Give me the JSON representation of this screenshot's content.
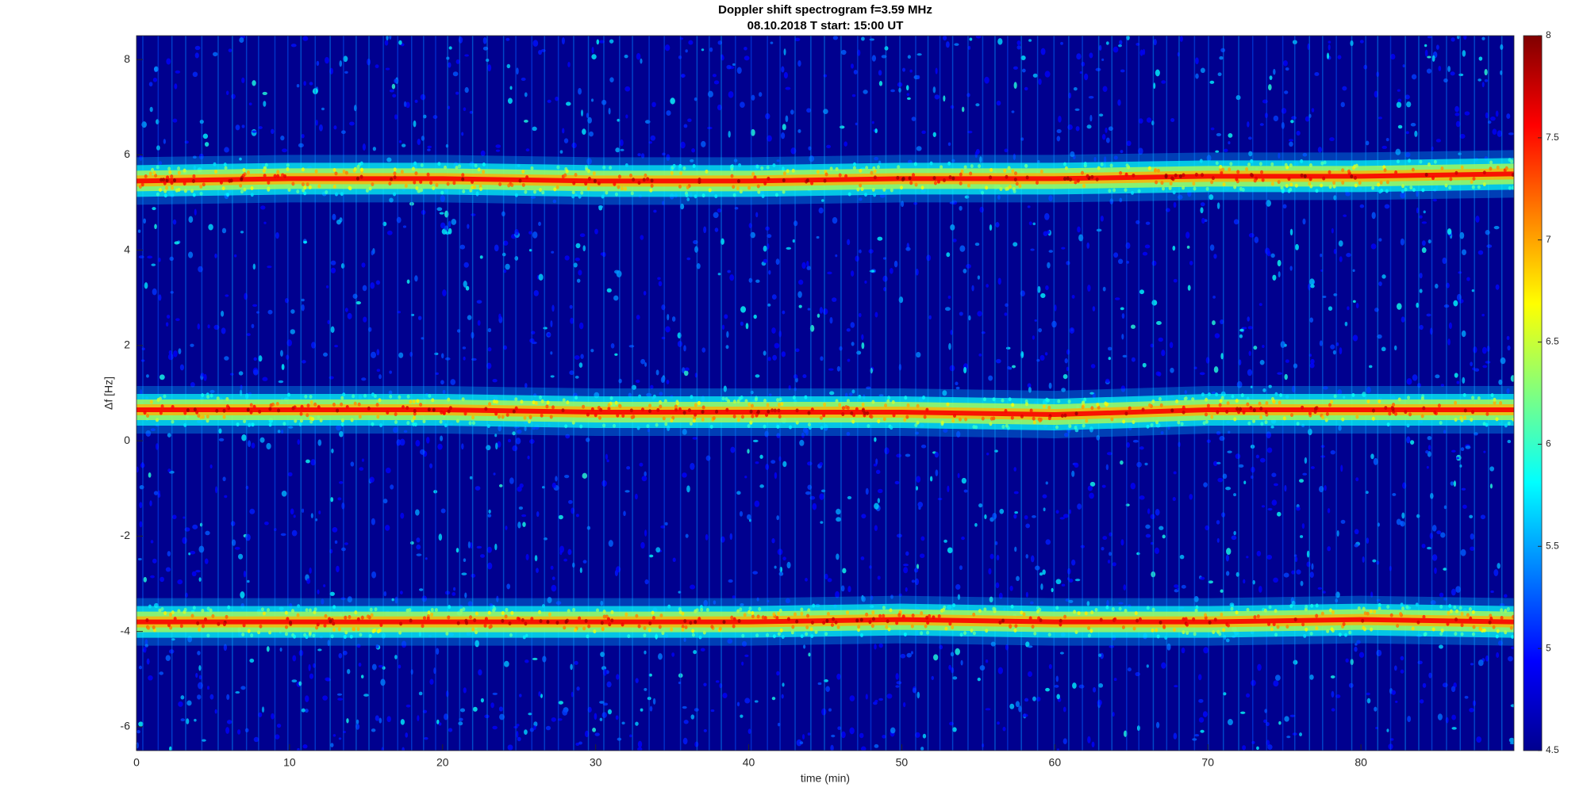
{
  "chart_data": {
    "type": "heatmap",
    "title": "Doppler shift spectrogram f=3.59 MHz",
    "subtitle": "08.10.2018   T start: 15:00 UT",
    "xlabel": "time (min)",
    "ylabel": "Δf [Hz]",
    "xlim": [
      0,
      90
    ],
    "ylim": [
      -6.5,
      8.5
    ],
    "xticks": [
      0,
      10,
      20,
      30,
      40,
      50,
      60,
      70,
      80
    ],
    "yticks": [
      -6,
      -4,
      -2,
      0,
      2,
      4,
      6,
      8
    ],
    "colormap": "jet",
    "colorbar": {
      "clim": [
        4.5,
        8
      ],
      "ticks": [
        4.5,
        5,
        5.5,
        6,
        6.5,
        7,
        7.5,
        8
      ]
    },
    "x": [
      0,
      10,
      20,
      30,
      40,
      50,
      60,
      70,
      80,
      90
    ],
    "series": [
      {
        "values": [
          5.45,
          5.5,
          5.5,
          5.45,
          5.45,
          5.5,
          5.5,
          5.55,
          5.55,
          5.6
        ]
      },
      {
        "values": [
          0.65,
          0.65,
          0.65,
          0.6,
          0.6,
          0.6,
          0.55,
          0.65,
          0.65,
          0.65
        ]
      },
      {
        "values": [
          -3.8,
          -3.8,
          -3.8,
          -3.8,
          -3.8,
          -3.75,
          -3.8,
          -3.8,
          -3.75,
          -3.8
        ]
      }
    ]
  }
}
